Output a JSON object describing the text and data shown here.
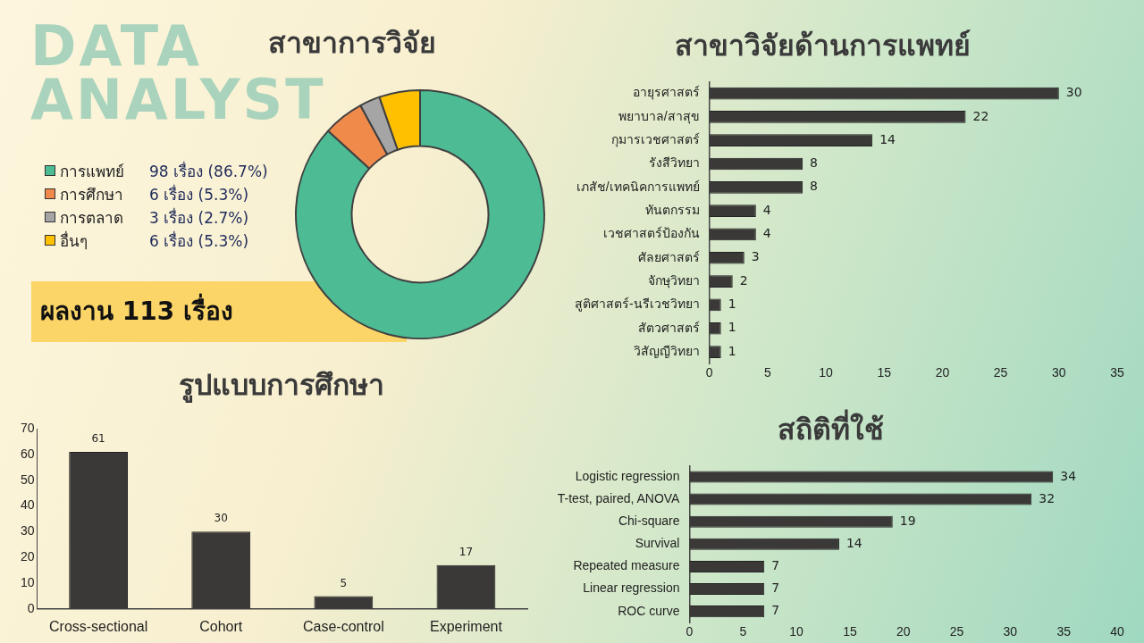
{
  "chart_data": [
    {
      "type": "donut",
      "title": "สาขาการวิจัย",
      "annotations": [
        "DATA ANALYST",
        "ผลงาน 113 เรื่อง"
      ],
      "categories": [
        "การแพทย์",
        "การศึกษา",
        "การตลาด",
        "อื่นๆ"
      ],
      "values": [
        98,
        6,
        3,
        6
      ],
      "colors": [
        "#4dbb94",
        "#f08a4b",
        "#a5a5a5",
        "#ffc000"
      ],
      "value_labels": [
        "98 เรื่อง (86.7%)",
        "6 เรื่อง (5.3%)",
        "3 เรื่อง (2.7%)",
        "6 เรื่อง (5.3%)"
      ],
      "legend": "left"
    },
    {
      "type": "bar",
      "orientation": "horizontal",
      "title": "สาขาวิจัยด้านการแพทย์",
      "categories": [
        "อายุรศาสตร์",
        "พยาบาล/สาสุข",
        "กุมารเวชศาสตร์",
        "รังสีวิทยา",
        "เภสัช/เทคนิคการแพทย์",
        "ทันตกรรม",
        "เวชศาสตร์ป้องกัน",
        "ศัลยศาสตร์",
        "จักษุวิทยา",
        "สูติศาสตร์-นรีเวชวิทยา",
        "สัตวศาสตร์",
        "วิสัญญีวิทยา"
      ],
      "values": [
        30,
        22,
        14,
        8,
        8,
        4,
        4,
        3,
        2,
        1,
        1,
        1
      ],
      "color": "#3b3838",
      "xlim": [
        0,
        35
      ],
      "xticks": [
        0,
        5,
        10,
        15,
        20,
        25,
        30,
        35
      ],
      "data_labels": true,
      "grid": false
    },
    {
      "type": "bar",
      "title": "รูปแบบการศึกษา",
      "categories": [
        "Cross-sectional",
        "Cohort",
        "Case-control",
        "Experiment"
      ],
      "values": [
        61,
        30,
        5,
        17
      ],
      "color": "#3b3838",
      "ylim": [
        0,
        70
      ],
      "yticks": [
        0,
        10,
        20,
        30,
        40,
        50,
        60,
        70
      ],
      "data_labels": true,
      "grid": false
    },
    {
      "type": "bar",
      "orientation": "horizontal",
      "title": "สถิติที่ใช้",
      "categories": [
        "Logistic regression",
        "T-test, paired, ANOVA",
        "Chi-square",
        "Survival",
        "Repeated measure",
        "Linear regression",
        "ROC curve"
      ],
      "values": [
        34,
        32,
        19,
        14,
        7,
        7,
        7
      ],
      "color": "#3b3838",
      "xlim": [
        0,
        40
      ],
      "xticks": [
        0,
        5,
        10,
        15,
        20,
        25,
        30,
        35,
        40
      ],
      "data_labels": true,
      "grid": false
    }
  ]
}
